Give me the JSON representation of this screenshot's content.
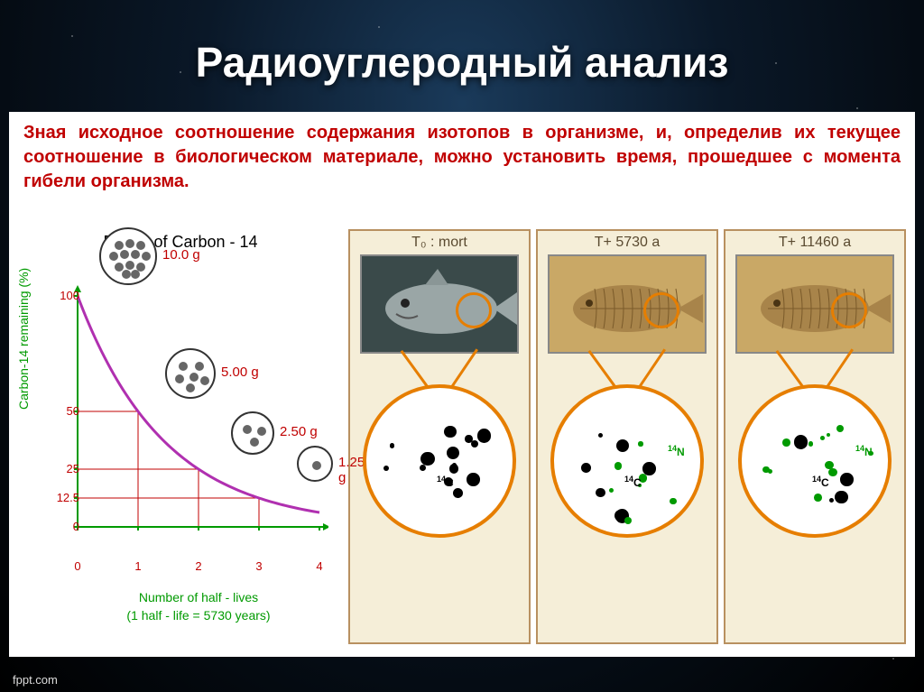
{
  "title": "Радиоуглеродный анализ",
  "blurb": "Зная исходное соотношение содержания изотопов в организме, и, определив их текущее соотношение в биологическом материале, можно установить время, прошедшее с момента гибели организма.",
  "watermark": "fppt.com",
  "decay_chart": {
    "title": "Decay of Carbon - 14",
    "ylabel": "Carbon-14 remaining (%)",
    "xlabel": "Number of half - lives",
    "xsub": "(1 half - life = 5730 years)",
    "xlim": [
      0,
      4
    ],
    "ylim": [
      0,
      100
    ],
    "yticks": [
      0,
      12.5,
      25,
      50,
      100
    ],
    "xticks": [
      0,
      1,
      2,
      3,
      4
    ],
    "curve_color": "#b030b0",
    "grid_color": "#c00000",
    "axis_color": "#009a00",
    "atom_border": "#333333",
    "atom_fill": "#666666",
    "gram_label_color": "#c00000",
    "points": [
      {
        "x": 0,
        "y": 100,
        "mass": "10.0 g",
        "n": 12,
        "d": 64
      },
      {
        "x": 1,
        "y": 50,
        "mass": "5.00 g",
        "n": 6,
        "d": 56
      },
      {
        "x": 2,
        "y": 25,
        "mass": "2.50 g",
        "n": 3,
        "d": 48
      },
      {
        "x": 3,
        "y": 12.5,
        "mass": "1.25 g",
        "n": 1,
        "d": 40
      }
    ]
  },
  "stages": {
    "panel_border": "#b89060",
    "panel_bg": "#f5eed8",
    "ring_color": "#e67e00",
    "c14_color": "#000000",
    "n14_color": "#009a00",
    "c14_label": "¹⁴C",
    "n14_label": "¹⁴N",
    "items": [
      {
        "title": "T₀ : mort",
        "fossil": false,
        "c14": 14,
        "n14": 0
      },
      {
        "title": "T+ 5730 a",
        "fossil": true,
        "c14": 7,
        "n14": 7
      },
      {
        "title": "T+ 11460 a",
        "fossil": true,
        "c14": 4,
        "n14": 11
      }
    ]
  }
}
